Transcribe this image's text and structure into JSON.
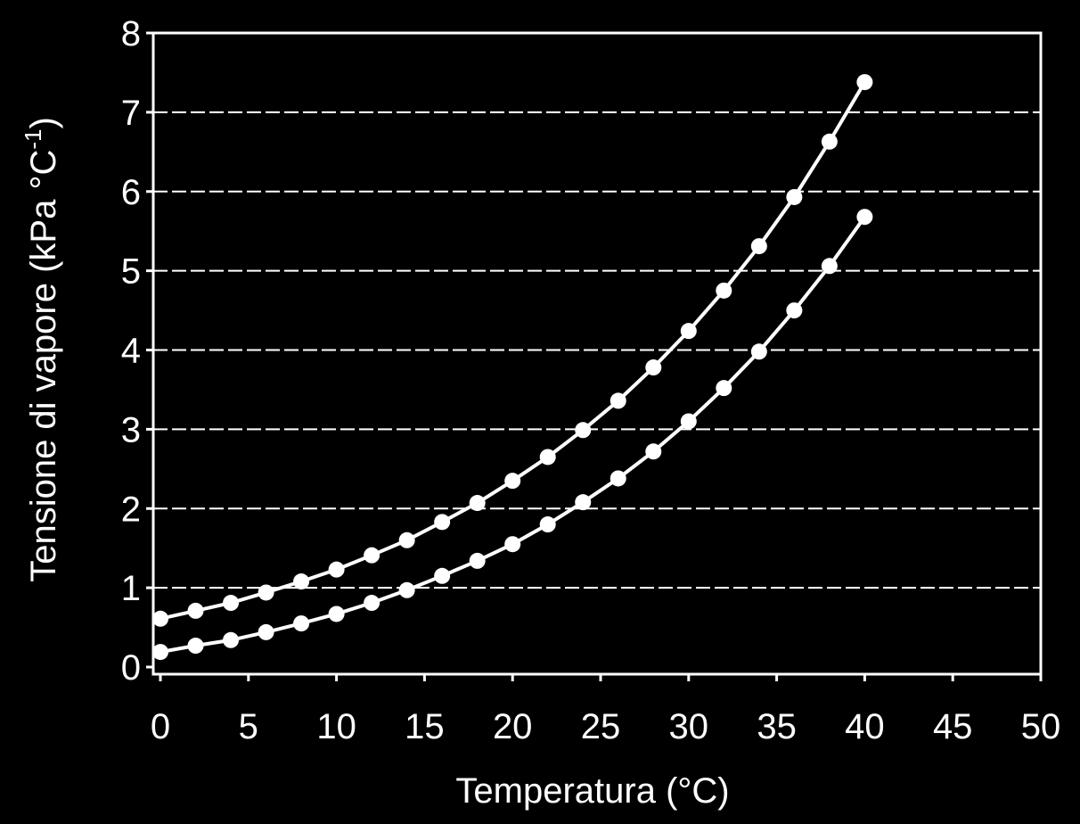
{
  "chart_data": {
    "type": "line",
    "x_label": "Temperatura (°C)",
    "y_label": {
      "text": "Tensione di vapore (kPa °C",
      "superscript": "-1",
      "suffix": ")"
    },
    "x": [
      0,
      2,
      4,
      6,
      8,
      10,
      12,
      14,
      16,
      18,
      20,
      22,
      24,
      26,
      28,
      30,
      32,
      34,
      36,
      38,
      40
    ],
    "series": [
      {
        "color": "#ffffff",
        "values": [
          0.61,
          0.71,
          0.81,
          0.94,
          1.08,
          1.23,
          1.41,
          1.6,
          1.83,
          2.07,
          2.35,
          2.65,
          2.99,
          3.36,
          3.78,
          4.24,
          4.75,
          5.31,
          5.93,
          6.63,
          7.38
        ]
      },
      {
        "color": "#ffffff",
        "values": [
          0.19,
          0.27,
          0.34,
          0.44,
          0.55,
          0.67,
          0.81,
          0.97,
          1.15,
          1.34,
          1.55,
          1.8,
          2.08,
          2.38,
          2.72,
          3.1,
          3.52,
          3.98,
          4.5,
          5.06,
          5.68
        ]
      }
    ],
    "xlim": [
      0,
      50
    ],
    "xticks": [
      0,
      5,
      10,
      15,
      20,
      25,
      30,
      35,
      40,
      45,
      50
    ],
    "ylim": [
      0,
      8
    ],
    "yticks": [
      0,
      1,
      2,
      3,
      4,
      5,
      6,
      7,
      8
    ],
    "grid": true,
    "background": "#000000"
  }
}
